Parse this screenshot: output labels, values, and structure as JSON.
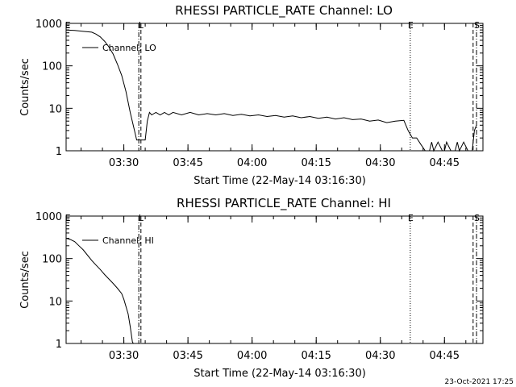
{
  "footer": {
    "timestamp": "23-Oct-2021 17:25"
  },
  "chart_data": [
    {
      "type": "line",
      "title": "RHESSI PARTICLE_RATE Channel: LO",
      "xlabel": "Start Time (22-May-14 03:16:30)",
      "ylabel": "Counts/sec",
      "yscale": "log",
      "ylim": [
        1,
        1000
      ],
      "yticks": [
        1,
        10,
        100,
        1000
      ],
      "ytick_labels": [
        "1",
        "10",
        "100",
        "1000"
      ],
      "xlim_min": [
        0,
        97.5
      ],
      "xticks_min": [
        13.5,
        28.5,
        43.5,
        58.5,
        73.5,
        88.5
      ],
      "xtick_labels": [
        "03:30",
        "03:45",
        "04:00",
        "04:15",
        "04:30",
        "04:45"
      ],
      "legend": {
        "label": "Channel: LO",
        "placement": "top-left"
      },
      "markers": [
        {
          "label": "E",
          "x": 0.3,
          "style": "none"
        },
        {
          "label": "",
          "x": 17.0,
          "style": "dashdot"
        },
        {
          "label": "L",
          "x": 17.5,
          "style": "dashed"
        },
        {
          "label": "E",
          "x": 80.5,
          "style": "dotted"
        },
        {
          "label": "",
          "x": 95.2,
          "style": "dashed"
        },
        {
          "label": "S",
          "x": 96.0,
          "style": "dashdot"
        }
      ],
      "series": [
        {
          "name": "Channel: LO",
          "points": [
            [
              0,
              700
            ],
            [
              2,
              680
            ],
            [
              4,
              650
            ],
            [
              6,
              620
            ],
            [
              7,
              560
            ],
            [
              8,
              480
            ],
            [
              9,
              380
            ],
            [
              10,
              280
            ],
            [
              11,
              190
            ],
            [
              12,
              110
            ],
            [
              13,
              60
            ],
            [
              14,
              25
            ],
            [
              15,
              8
            ],
            [
              16,
              3
            ],
            [
              16.5,
              1.8
            ],
            [
              18.5,
              1.8
            ],
            [
              19,
              5
            ],
            [
              19.5,
              8
            ],
            [
              20,
              7
            ],
            [
              21,
              8
            ],
            [
              22,
              7
            ],
            [
              23,
              8
            ],
            [
              24,
              7
            ],
            [
              25,
              8
            ],
            [
              27,
              7
            ],
            [
              29,
              8
            ],
            [
              31,
              7
            ],
            [
              33,
              7.5
            ],
            [
              35,
              7
            ],
            [
              37,
              7.5
            ],
            [
              39,
              6.8
            ],
            [
              41,
              7.2
            ],
            [
              43,
              6.6
            ],
            [
              45,
              7
            ],
            [
              47,
              6.4
            ],
            [
              49,
              6.8
            ],
            [
              51,
              6.2
            ],
            [
              53,
              6.6
            ],
            [
              55,
              6
            ],
            [
              57,
              6.4
            ],
            [
              59,
              5.8
            ],
            [
              61,
              6.2
            ],
            [
              63,
              5.6
            ],
            [
              65,
              6
            ],
            [
              67,
              5.4
            ],
            [
              69,
              5.6
            ],
            [
              71,
              5
            ],
            [
              73,
              5.3
            ],
            [
              75,
              4.6
            ],
            [
              77,
              5
            ],
            [
              79,
              5.2
            ],
            [
              80,
              3
            ],
            [
              81,
              2
            ],
            [
              82,
              2
            ],
            [
              83,
              1.4
            ],
            [
              84,
              1
            ],
            [
              85,
              1
            ],
            [
              85.5,
              1.6
            ],
            [
              86,
              1
            ],
            [
              87,
              1.6
            ],
            [
              88,
              1
            ],
            [
              88.5,
              1
            ],
            [
              89,
              1.6
            ],
            [
              90,
              1
            ],
            [
              91,
              1
            ],
            [
              91.5,
              1.6
            ],
            [
              92,
              1
            ],
            [
              93,
              1.6
            ],
            [
              94,
              1
            ],
            [
              95,
              1
            ],
            [
              95.5,
              3
            ],
            [
              96,
              4
            ]
          ]
        }
      ]
    },
    {
      "type": "line",
      "title": "RHESSI PARTICLE_RATE Channel: HI",
      "xlabel": "Start Time (22-May-14 03:16:30)",
      "ylabel": "Counts/sec",
      "yscale": "log",
      "ylim": [
        1,
        1000
      ],
      "yticks": [
        1,
        10,
        100,
        1000
      ],
      "ytick_labels": [
        "1",
        "10",
        "100",
        "1000"
      ],
      "xlim_min": [
        0,
        97.5
      ],
      "xticks_min": [
        13.5,
        28.5,
        43.5,
        58.5,
        73.5,
        88.5
      ],
      "xtick_labels": [
        "03:30",
        "03:45",
        "04:00",
        "04:15",
        "04:30",
        "04:45"
      ],
      "legend": {
        "label": "Channel: HI",
        "placement": "top-left"
      },
      "markers": [
        {
          "label": "E",
          "x": 0.3,
          "style": "none"
        },
        {
          "label": "",
          "x": 17.0,
          "style": "dashdot"
        },
        {
          "label": "L",
          "x": 17.5,
          "style": "dashed"
        },
        {
          "label": "E",
          "x": 80.5,
          "style": "dotted"
        },
        {
          "label": "",
          "x": 95.2,
          "style": "dashed"
        },
        {
          "label": "S",
          "x": 96.0,
          "style": "dashdot"
        }
      ],
      "series": [
        {
          "name": "Channel: HI",
          "points": [
            [
              0,
              300
            ],
            [
              1,
              280
            ],
            [
              2,
              250
            ],
            [
              3,
              200
            ],
            [
              4,
              160
            ],
            [
              5,
              120
            ],
            [
              6,
              90
            ],
            [
              7,
              70
            ],
            [
              8,
              55
            ],
            [
              9,
              42
            ],
            [
              10,
              33
            ],
            [
              11,
              26
            ],
            [
              12,
              20
            ],
            [
              13,
              15
            ],
            [
              13.5,
              11
            ],
            [
              14.5,
              5
            ],
            [
              15,
              2.5
            ],
            [
              15.5,
              1.1
            ],
            [
              15.7,
              1
            ]
          ]
        }
      ]
    }
  ]
}
